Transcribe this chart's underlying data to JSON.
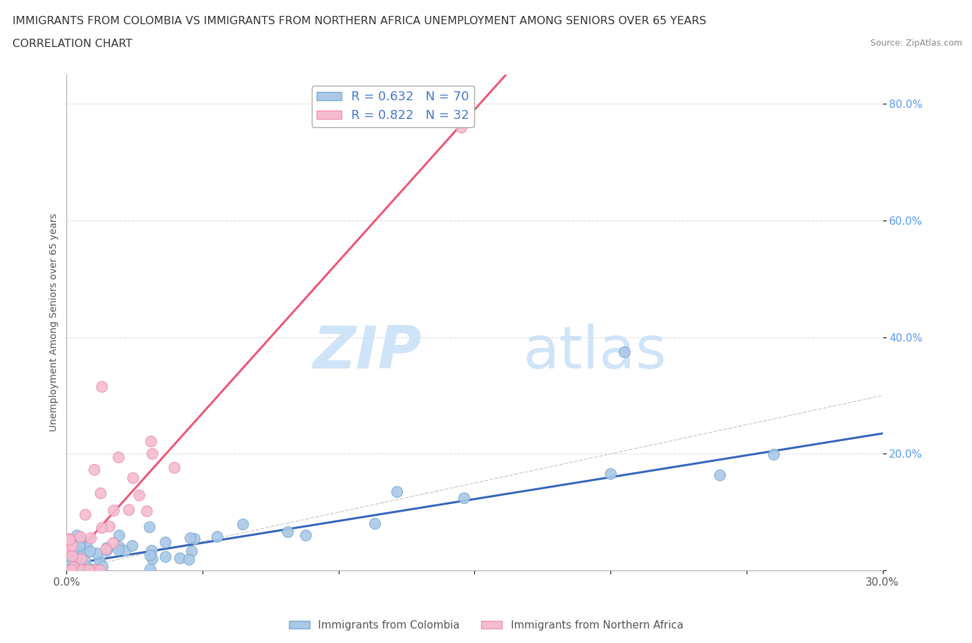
{
  "title_line1": "IMMIGRANTS FROM COLOMBIA VS IMMIGRANTS FROM NORTHERN AFRICA UNEMPLOYMENT AMONG SENIORS OVER 65 YEARS",
  "title_line2": "CORRELATION CHART",
  "source": "Source: ZipAtlas.com",
  "ylabel": "Unemployment Among Seniors over 65 years",
  "xlim": [
    0.0,
    0.3
  ],
  "ylim": [
    0.0,
    0.85
  ],
  "xticks": [
    0.0,
    0.05,
    0.1,
    0.15,
    0.2,
    0.25,
    0.3
  ],
  "yticks": [
    0.0,
    0.2,
    0.4,
    0.6,
    0.8
  ],
  "ytick_labels": [
    "",
    "20.0%",
    "40.0%",
    "60.0%",
    "80.0%"
  ],
  "xtick_labels": [
    "0.0%",
    "",
    "",
    "",
    "",
    "",
    "30.0%"
  ],
  "colombia_color": "#aac8e8",
  "colombia_edge": "#7aaad0",
  "northern_africa_color": "#f5bcd0",
  "northern_africa_edge": "#ee90b0",
  "trend_colombia_color": "#3366bb",
  "trend_na_color": "#ee5577",
  "diagonal_color": "#cccccc",
  "R_colombia": 0.632,
  "N_colombia": 70,
  "R_na": 0.822,
  "N_na": 32,
  "watermark_zip": "ZIP",
  "watermark_atlas": "atlas",
  "background_color": "#ffffff",
  "colombia_trend_slope": 0.75,
  "colombia_trend_intercept": 0.01,
  "na_trend_slope": 5.2,
  "na_trend_intercept": 0.01
}
